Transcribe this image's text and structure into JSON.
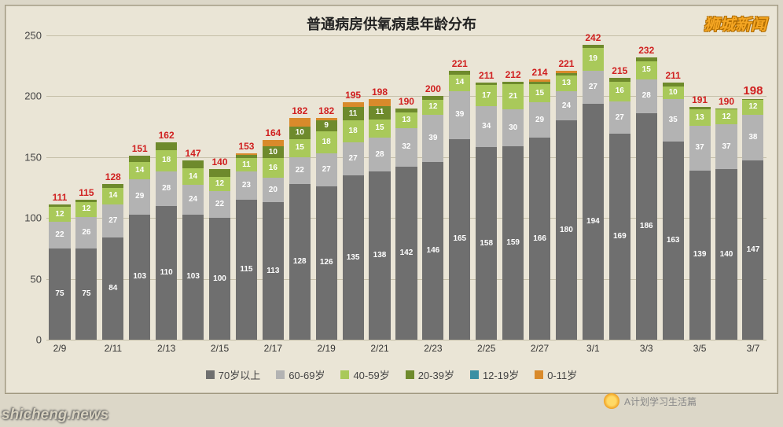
{
  "title": "普通病房供氧病患年龄分布",
  "watermark_right": "狮城新闻",
  "watermark_bottom": "shicheng.news",
  "wechat_label": "A计划学习生活篇",
  "chart": {
    "type": "stacked-bar",
    "ylim": [
      0,
      250
    ],
    "ytick_step": 50,
    "background_color": "#eae5d6",
    "grid_color": "#c5bfa8",
    "total_label_color": "#d02020",
    "total_label_last_bold": true,
    "label_fontsize": 12,
    "title_fontsize": 18,
    "series": [
      {
        "key": "age70",
        "label": "70岁以上",
        "color": "#6f6f6f"
      },
      {
        "key": "age60",
        "label": "60-69岁",
        "color": "#b3b3b3"
      },
      {
        "key": "age40",
        "label": "40-59岁",
        "color": "#a9c95a"
      },
      {
        "key": "age20",
        "label": "20-39岁",
        "color": "#6e8a2c"
      },
      {
        "key": "age12",
        "label": "12-19岁",
        "color": "#3a8fa3"
      },
      {
        "key": "age0",
        "label": "0-11岁",
        "color": "#d98a2b"
      }
    ],
    "x_labels_shown": [
      "2/9",
      "",
      "2/11",
      "",
      "2/13",
      "",
      "2/15",
      "",
      "2/17",
      "",
      "2/19",
      "",
      "2/21",
      "",
      "2/23",
      "",
      "2/25",
      "",
      "2/27",
      "",
      "3/1",
      "",
      "3/3",
      "",
      "3/5",
      "",
      "3/7"
    ],
    "bars": [
      {
        "date": "2/9",
        "total": 111,
        "age70": 75,
        "age60": 22,
        "age40": 12,
        "age20": 2,
        "age12": 0,
        "age0": 0
      },
      {
        "date": "2/10",
        "total": 115,
        "age70": 75,
        "age60": 26,
        "age40": 12,
        "age20": 2,
        "age12": 0,
        "age0": 0
      },
      {
        "date": "2/11",
        "total": 128,
        "age70": 84,
        "age60": 27,
        "age40": 14,
        "age20": 3,
        "age12": 0,
        "age0": 0
      },
      {
        "date": "2/12",
        "total": 151,
        "age70": 103,
        "age60": 29,
        "age40": 14,
        "age20": 5,
        "age12": 0,
        "age0": 0
      },
      {
        "date": "2/13",
        "total": 162,
        "age70": 110,
        "age60": 28,
        "age40": 18,
        "age20": 6,
        "age12": 0,
        "age0": 0
      },
      {
        "date": "2/14",
        "total": 147,
        "age70": 103,
        "age60": 24,
        "age40": 14,
        "age20": 6,
        "age12": 0,
        "age0": 0
      },
      {
        "date": "2/15",
        "total": 140,
        "age70": 100,
        "age60": 22,
        "age40": 12,
        "age20": 6,
        "age12": 0,
        "age0": 0
      },
      {
        "date": "2/16",
        "total": 153,
        "age70": 115,
        "age60": 23,
        "age40": 11,
        "age20": 3,
        "age12": 0,
        "age0": 1
      },
      {
        "date": "2/17",
        "total": 164,
        "age70": 113,
        "age60": 20,
        "age40": 16,
        "age20": 10,
        "age12": 0,
        "age0": 5
      },
      {
        "date": "2/18",
        "total": 182,
        "age70": 128,
        "age60": 22,
        "age40": 15,
        "age20": 10,
        "age12": 0,
        "age0": 7
      },
      {
        "date": "2/19",
        "total": 182,
        "age70": 126,
        "age60": 27,
        "age40": 18,
        "age20": 9,
        "age12": 0,
        "age0": 2
      },
      {
        "date": "2/20",
        "total": 195,
        "age70": 135,
        "age60": 27,
        "age40": 18,
        "age20": 11,
        "age12": 0,
        "age0": 4
      },
      {
        "date": "2/21",
        "total": 198,
        "age70": 138,
        "age60": 28,
        "age40": 15,
        "age20": 11,
        "age12": 0,
        "age0": 6
      },
      {
        "date": "2/22",
        "total": 190,
        "age70": 142,
        "age60": 32,
        "age40": 13,
        "age20": 3,
        "age12": 0,
        "age0": 0
      },
      {
        "date": "2/23",
        "total": 200,
        "age70": 146,
        "age60": 39,
        "age40": 12,
        "age20": 3,
        "age12": 0,
        "age0": 0
      },
      {
        "date": "2/24",
        "total": 221,
        "age70": 165,
        "age60": 39,
        "age40": 14,
        "age20": 3,
        "age12": 0,
        "age0": 0
      },
      {
        "date": "2/25",
        "total": 211,
        "age70": 158,
        "age60": 34,
        "age40": 17,
        "age20": 2,
        "age12": 0,
        "age0": 0
      },
      {
        "date": "2/26",
        "total": 212,
        "age70": 159,
        "age60": 30,
        "age40": 21,
        "age20": 2,
        "age12": 0,
        "age0": 0
      },
      {
        "date": "2/27",
        "total": 214,
        "age70": 166,
        "age60": 29,
        "age40": 15,
        "age20": 2,
        "age12": 0,
        "age0": 2
      },
      {
        "date": "2/28",
        "total": 221,
        "age70": 180,
        "age60": 24,
        "age40": 13,
        "age20": 2,
        "age12": 0,
        "age0": 2
      },
      {
        "date": "3/1",
        "total": 242,
        "age70": 194,
        "age60": 27,
        "age40": 19,
        "age20": 2,
        "age12": 0,
        "age0": 0
      },
      {
        "date": "3/2",
        "total": 215,
        "age70": 169,
        "age60": 27,
        "age40": 16,
        "age20": 3,
        "age12": 0,
        "age0": 0
      },
      {
        "date": "3/3",
        "total": 232,
        "age70": 186,
        "age60": 28,
        "age40": 15,
        "age20": 3,
        "age12": 0,
        "age0": 0
      },
      {
        "date": "3/4",
        "total": 211,
        "age70": 163,
        "age60": 35,
        "age40": 10,
        "age20": 3,
        "age12": 0,
        "age0": 0
      },
      {
        "date": "3/5",
        "total": 191,
        "age70": 139,
        "age60": 37,
        "age40": 13,
        "age20": 2,
        "age12": 0,
        "age0": 0
      },
      {
        "date": "3/6",
        "total": 190,
        "age70": 140,
        "age60": 37,
        "age40": 12,
        "age20": 1,
        "age12": 0,
        "age0": 0
      },
      {
        "date": "3/7",
        "total": 198,
        "age70": 147,
        "age60": 38,
        "age40": 12,
        "age20": 1,
        "age12": 0,
        "age0": 0
      }
    ]
  }
}
